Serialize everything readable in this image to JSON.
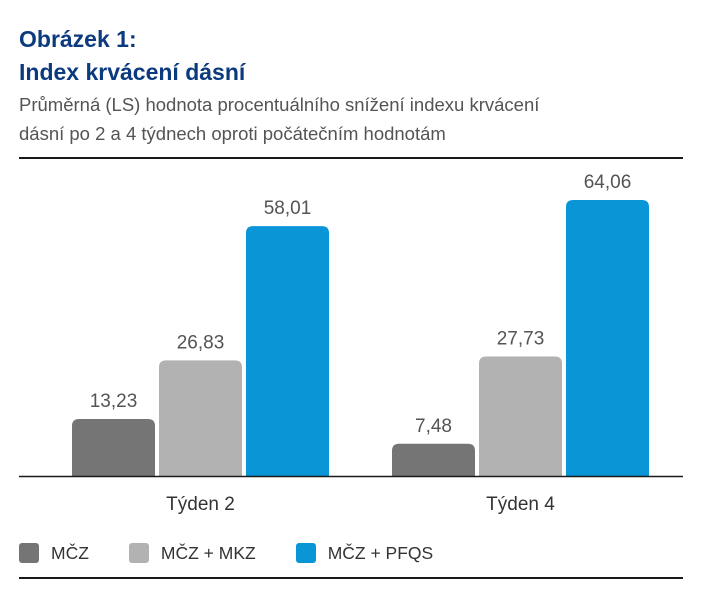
{
  "header": {
    "title_line1": "Obrázek 1:",
    "title_line2": "Index krvácení dásní",
    "subtitle_line1": "Průměrná (LS) hodnota procentuálního snížení indexu krvácení",
    "subtitle_line2": "dásní po 2 a 4 týdnech oproti počátečním hodnotám"
  },
  "chart_data": {
    "type": "bar",
    "title": "Index krvácení dásní",
    "categories": [
      "Týden 2",
      "Týden 4"
    ],
    "series": [
      {
        "name": "MČZ",
        "values": [
          13.23,
          7.48
        ],
        "labels": [
          "13,23",
          "7,48"
        ],
        "color": "#757575"
      },
      {
        "name": "MČZ + MKZ",
        "values": [
          26.83,
          27.73
        ],
        "labels": [
          "26,83",
          "27,73"
        ],
        "color": "#b2b2b2"
      },
      {
        "name": "MČZ + PFQS",
        "values": [
          58.01,
          64.06
        ],
        "labels": [
          "58,01",
          "64,06"
        ],
        "color": "#0a96d6"
      }
    ],
    "xlabel": "",
    "ylabel": "",
    "ylim": [
      0,
      64.06
    ],
    "grid": false,
    "legend_placement": "bottom"
  },
  "colors": {
    "title": "#0b3a7e",
    "text": "#545454",
    "axis": "#1a1a1a"
  }
}
